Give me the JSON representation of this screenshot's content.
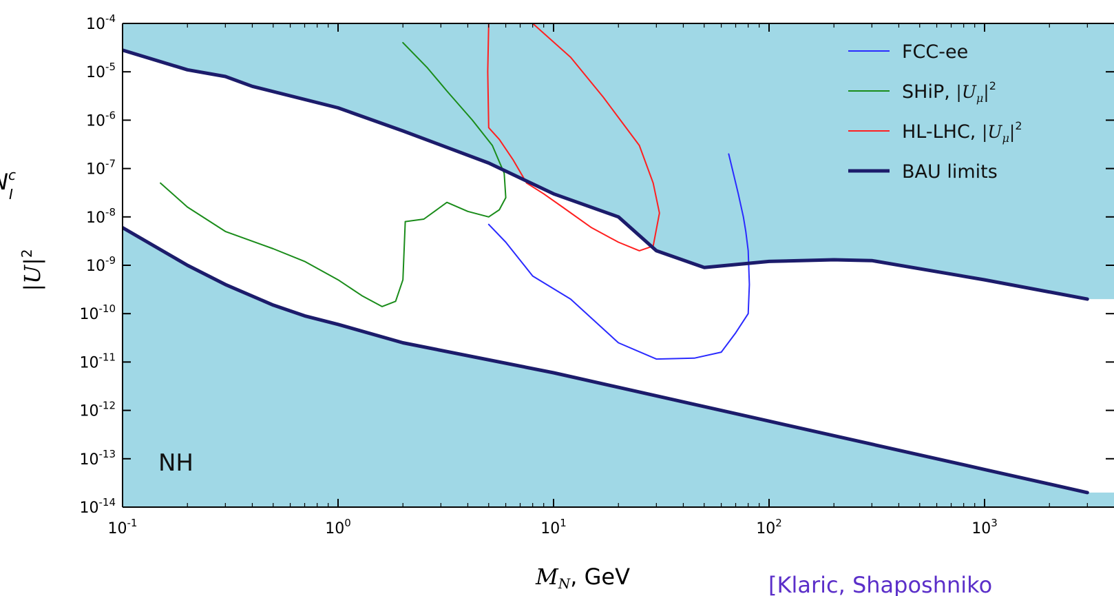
{
  "chart_data": {
    "type": "line",
    "xscale": "log",
    "yscale": "log",
    "xlim": [
      0.1,
      3000
    ],
    "ylim": [
      1e-14,
      0.0001
    ],
    "xticks": [
      {
        "value": 0.1,
        "base": "10",
        "exp": "-1"
      },
      {
        "value": 1,
        "base": "10",
        "exp": "0"
      },
      {
        "value": 10,
        "base": "10",
        "exp": "1"
      },
      {
        "value": 100,
        "base": "10",
        "exp": "2"
      },
      {
        "value": 1000,
        "base": "10",
        "exp": "3"
      }
    ],
    "yticks": [
      {
        "value": 0.0001,
        "base": "10",
        "exp": "-4"
      },
      {
        "value": 1e-05,
        "base": "10",
        "exp": "-5"
      },
      {
        "value": 1e-06,
        "base": "10",
        "exp": "-6"
      },
      {
        "value": 1e-07,
        "base": "10",
        "exp": "-7"
      },
      {
        "value": 1e-08,
        "base": "10",
        "exp": "-8"
      },
      {
        "value": 1e-09,
        "base": "10",
        "exp": "-9"
      },
      {
        "value": 1e-10,
        "base": "10",
        "exp": "-10"
      },
      {
        "value": 1e-11,
        "base": "10",
        "exp": "-11"
      },
      {
        "value": 1e-12,
        "base": "10",
        "exp": "-12"
      },
      {
        "value": 1e-13,
        "base": "10",
        "exp": "-13"
      },
      {
        "value": 1e-14,
        "base": "10",
        "exp": "-14"
      }
    ],
    "xlabel": {
      "math": "M",
      "sub": "N",
      "text": ", GeV"
    },
    "ylabel": {
      "math": "|U|",
      "sup": "2"
    },
    "ylabel_partial": {
      "math": "N",
      "sup": "c",
      "sub": "I"
    },
    "annotation": "NH",
    "citation": "[Klaric, Shaposhniko",
    "fill_color": "#a0d8e6",
    "legend_position": "top-right",
    "series": [
      {
        "name": "FCC-ee",
        "color": "#2a2aff",
        "width": 2,
        "points": [
          [
            5,
            7e-09
          ],
          [
            6,
            3e-09
          ],
          [
            8,
            6e-10
          ],
          [
            12,
            2e-10
          ],
          [
            20,
            2.5e-11
          ],
          [
            30,
            1.15e-11
          ],
          [
            45,
            1.2e-11
          ],
          [
            60,
            1.6e-11
          ],
          [
            70,
            4e-11
          ],
          [
            80,
            1e-10
          ],
          [
            81,
            4e-10
          ],
          [
            80,
            2e-09
          ],
          [
            78,
            5e-09
          ],
          [
            76,
            1e-08
          ],
          [
            72,
            3e-08
          ],
          [
            65,
            2e-07
          ]
        ]
      },
      {
        "name": "SHiP, |Uμ|²",
        "color": "#1a8c1a",
        "width": 2,
        "points": [
          [
            0.15,
            5e-08
          ],
          [
            0.2,
            1.6e-08
          ],
          [
            0.3,
            5e-09
          ],
          [
            0.5,
            2.2e-09
          ],
          [
            0.7,
            1.2e-09
          ],
          [
            1,
            5e-10
          ],
          [
            1.3,
            2.3e-10
          ],
          [
            1.6,
            1.4e-10
          ],
          [
            1.85,
            1.8e-10
          ],
          [
            2,
            5e-10
          ],
          [
            2.05,
            8e-09
          ],
          [
            2.5,
            9e-09
          ],
          [
            3.2,
            2e-08
          ],
          [
            4,
            1.3e-08
          ],
          [
            5,
            1e-08
          ],
          [
            5.6,
            1.4e-08
          ],
          [
            6,
            2.5e-08
          ],
          [
            5.9,
            8e-08
          ],
          [
            5.2,
            3e-07
          ],
          [
            4.2,
            1e-06
          ],
          [
            3.2,
            4e-06
          ],
          [
            2.6,
            1.2e-05
          ],
          [
            2,
            4e-05
          ]
        ]
      },
      {
        "name": "HL-LHC, |Uμ|²",
        "color": "#ff1f1f",
        "width": 2,
        "points": [
          [
            5,
            0.0001
          ],
          [
            4.95,
            1e-05
          ],
          [
            5,
            7e-07
          ],
          [
            5.6,
            4e-07
          ],
          [
            6.5,
            1.5e-07
          ],
          [
            7.5,
            5e-08
          ],
          [
            9,
            3e-08
          ],
          [
            11,
            1.6e-08
          ],
          [
            15,
            6e-09
          ],
          [
            20,
            3e-09
          ],
          [
            25,
            2e-09
          ],
          [
            29,
            2.5e-09
          ],
          [
            31,
            1.2e-08
          ],
          [
            29,
            5e-08
          ],
          [
            25,
            3e-07
          ],
          [
            17,
            3e-06
          ],
          [
            12,
            2e-05
          ],
          [
            8,
            0.0001
          ]
        ]
      },
      {
        "name": "BAU limits",
        "color": "#1c1c6b",
        "width": 5,
        "points": [
          [
            0.1,
            2.8e-05
          ],
          [
            0.2,
            1.1e-05
          ],
          [
            0.3,
            8e-06
          ],
          [
            0.4,
            5e-06
          ],
          [
            1,
            1.8e-06
          ],
          [
            2,
            6e-07
          ],
          [
            5,
            1.3e-07
          ],
          [
            10,
            3e-08
          ],
          [
            20,
            1e-08
          ],
          [
            30,
            2e-09
          ],
          [
            50,
            9e-10
          ],
          [
            100,
            1.2e-09
          ],
          [
            200,
            1.3e-09
          ],
          [
            300,
            1.25e-09
          ],
          [
            1000,
            5e-10
          ],
          [
            3000,
            2e-10
          ]
        ]
      },
      {
        "name": "",
        "color": "#1c1c6b",
        "width": 5,
        "points": [
          [
            0.1,
            6e-09
          ],
          [
            0.2,
            1e-09
          ],
          [
            0.3,
            4e-10
          ],
          [
            0.5,
            1.5e-10
          ],
          [
            0.7,
            9e-11
          ],
          [
            1,
            6e-11
          ],
          [
            2,
            2.5e-11
          ],
          [
            10,
            6e-12
          ],
          [
            100,
            6e-13
          ],
          [
            1000,
            6e-14
          ],
          [
            3000,
            2e-14
          ]
        ]
      }
    ]
  }
}
